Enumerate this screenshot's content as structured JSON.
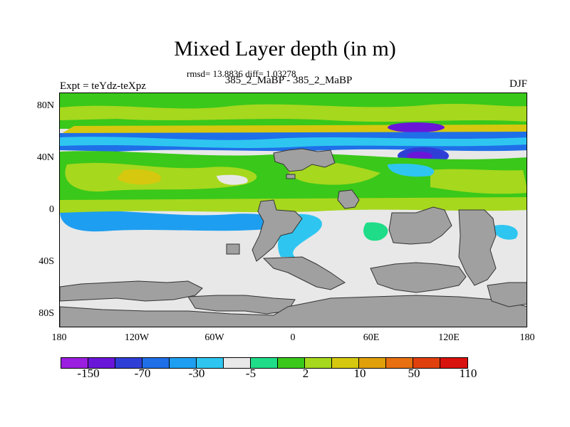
{
  "title": "Mixed Layer depth (in m)",
  "stats": "rmsd= 13.8836 diff= 1.03278",
  "runs": "385_2_MaBP - 385_2_MaBP",
  "experiment": "Expt = teYdz-teXpz",
  "season": "DJF",
  "lat_labels": [
    "80N",
    "40N",
    "0",
    "40S",
    "80S"
  ],
  "lon_labels": [
    "180",
    "120W",
    "60W",
    "0",
    "60E",
    "120E",
    "180"
  ],
  "colorbar": {
    "colors": [
      "#9a1fe0",
      "#6a16d8",
      "#2f3fd6",
      "#1f6fe8",
      "#1e9ef0",
      "#2ec6f0",
      "#e8e8e8",
      "#1fdc88",
      "#3ac81a",
      "#a6d81e",
      "#d6c80e",
      "#e0a00a",
      "#e87010",
      "#e0400e",
      "#d8120c"
    ],
    "labels": [
      "-150",
      "-70",
      "-30",
      "-5",
      "2",
      "10",
      "50",
      "110"
    ]
  },
  "colors": {
    "land": "#a0a0a0",
    "neutral": "#e8e8e8"
  }
}
